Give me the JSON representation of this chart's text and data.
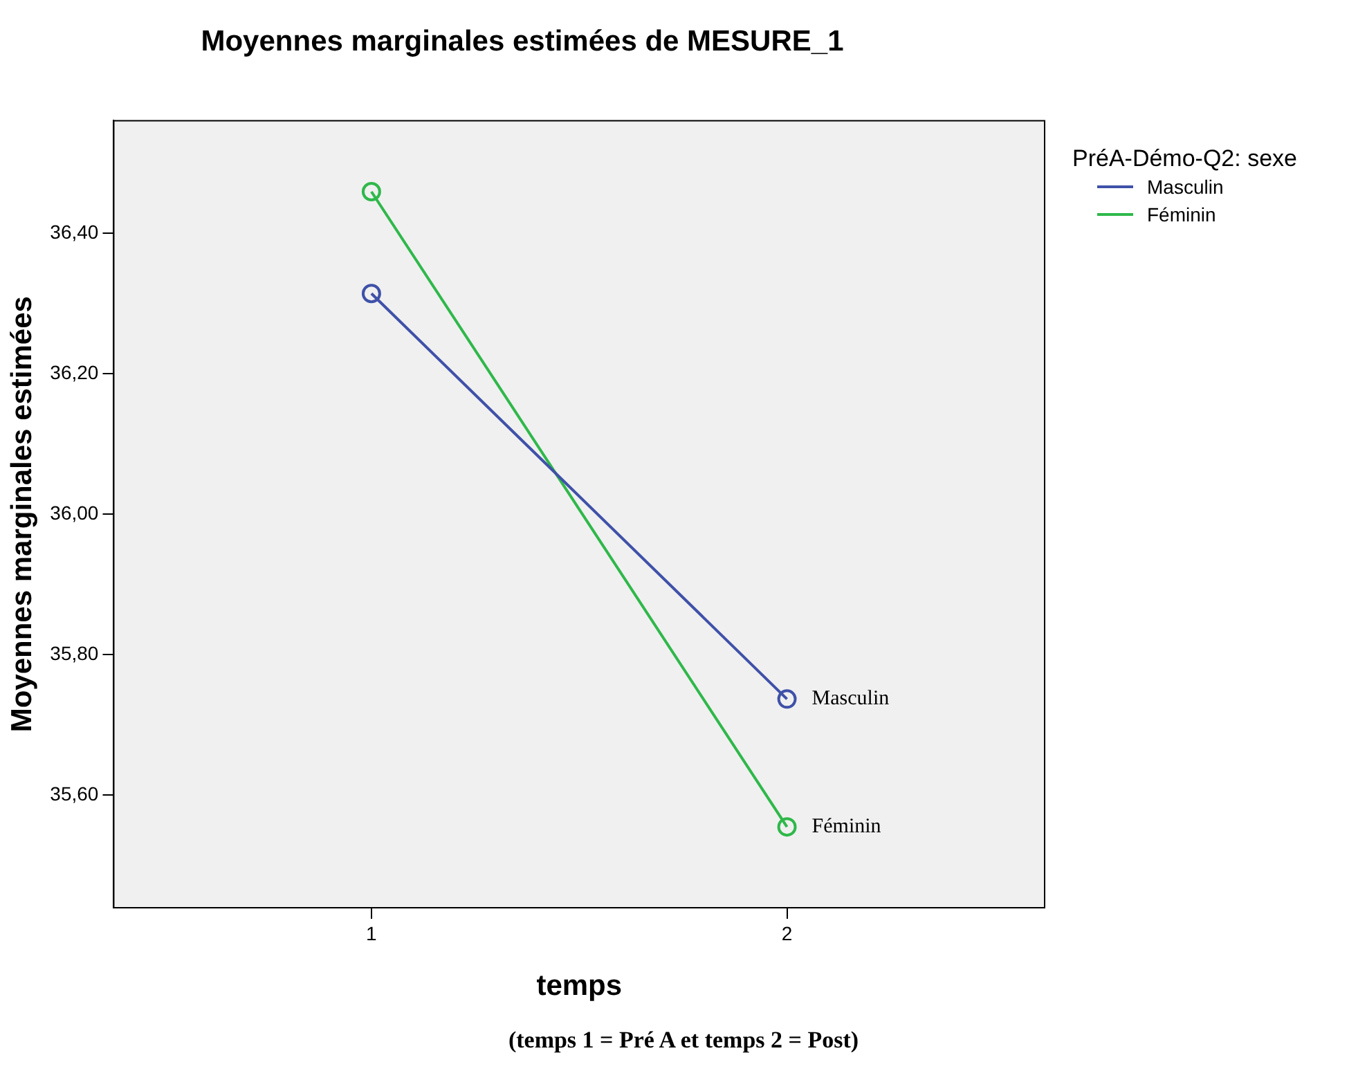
{
  "chart_data": {
    "type": "line",
    "title": "Moyennes marginales estimées de MESURE_1",
    "xlabel": "temps",
    "ylabel": "Moyennes marginales estimées",
    "legend_title": "PréA-Démo-Q2: sexe",
    "categories": [
      "1",
      "2"
    ],
    "series": [
      {
        "name": "Masculin",
        "color": "#3f51a8",
        "values": [
          36.314,
          35.737
        ]
      },
      {
        "name": "Féminin",
        "color": "#2fb84a",
        "values": [
          36.459,
          35.555
        ]
      }
    ],
    "ylim": [
      35.44,
      36.56
    ],
    "yticks": [
      {
        "value": 35.6,
        "label": "35,60"
      },
      {
        "value": 35.8,
        "label": "35,80"
      },
      {
        "value": 36.0,
        "label": "36,00"
      },
      {
        "value": 36.2,
        "label": "36,20"
      },
      {
        "value": 36.4,
        "label": "36,40"
      }
    ],
    "grid": false,
    "legend": "top right",
    "marker": "circle",
    "line_style": "solid",
    "annotations": [
      "(temps 1 = Pré A et temps 2 = Post)"
    ]
  }
}
